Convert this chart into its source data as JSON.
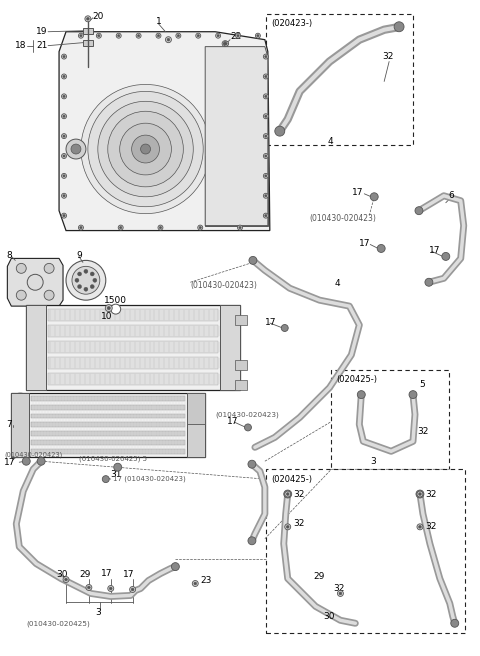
{
  "bg_color": "#ffffff",
  "fig_width": 4.8,
  "fig_height": 6.56,
  "dpi": 100,
  "line_color": "#222222",
  "gray1": "#888888",
  "gray2": "#cccccc",
  "gray3": "#555555",
  "gray4": "#eeeeee"
}
